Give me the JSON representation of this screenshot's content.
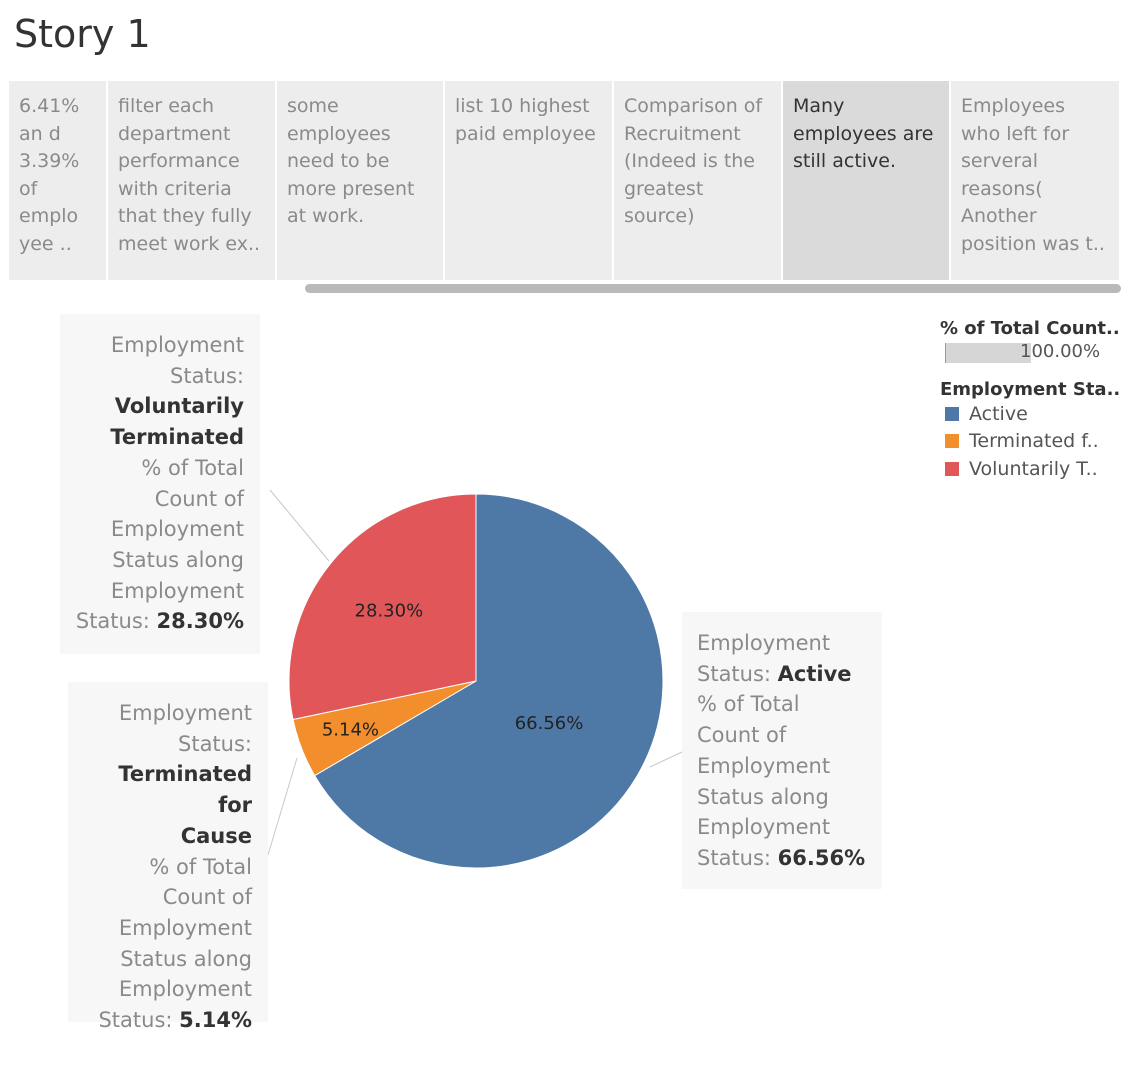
{
  "title": "Story 1",
  "story_points": [
    {
      "text": "6.41% an d 3.39% of emplo yee ..",
      "active": false
    },
    {
      "text": "filter each department performance with criteria that they fully meet work ex..",
      "active": false
    },
    {
      "text": "some employees need to be more present at work.",
      "active": false
    },
    {
      "text": "list 10 highest paid employee",
      "active": false
    },
    {
      "text": "Comparison of Recruitment (Indeed is the greatest source)",
      "active": false
    },
    {
      "text": "Many employees are still active.",
      "active": true
    },
    {
      "text": "Employees who left for serveral reasons( Another position was t..",
      "active": false
    }
  ],
  "legend": {
    "size_title": "% of Total Count..",
    "size_value": "100.00%",
    "color_title": "Employment Sta..",
    "items": [
      {
        "label": "Active",
        "color": "#4e79a7"
      },
      {
        "label": "Terminated f..",
        "color": "#f28e2b"
      },
      {
        "label": "Voluntarily T..",
        "color": "#e15759"
      }
    ]
  },
  "tooltips": {
    "voluntary": {
      "l1": "Employment",
      "l2": "Status:",
      "value1a": "Voluntarily",
      "value1b": "Terminated",
      "m1": "% of Total",
      "m2": "Count of",
      "m3": "Employment",
      "m4": "Status along",
      "m5": "Employment",
      "m6": "Status: ",
      "value2": "28.30%"
    },
    "cause": {
      "l1": "Employment",
      "l2": "Status:",
      "value1a": "Terminated for",
      "value1b": "Cause",
      "m1": "% of Total",
      "m2": "Count of",
      "m3": "Employment",
      "m4": "Status along",
      "m5": "Employment",
      "m6": "Status: ",
      "value2": "5.14%"
    },
    "active": {
      "l1": "Employment",
      "l2": "Status: ",
      "value1": "Active",
      "m1": "% of Total",
      "m2": "Count of",
      "m3": "Employment",
      "m4": "Status along",
      "m5": "Employment",
      "m6": "Status: ",
      "value2": "66.56%"
    }
  },
  "chart_data": {
    "type": "pie",
    "categories": [
      "Active",
      "Terminated for Cause",
      "Voluntarily Terminated"
    ],
    "values": [
      66.56,
      5.14,
      28.3
    ],
    "labels": [
      "66.56%",
      "5.14%",
      "28.30%"
    ],
    "colors": [
      "#4e79a7",
      "#f28e2b",
      "#e15759"
    ]
  }
}
